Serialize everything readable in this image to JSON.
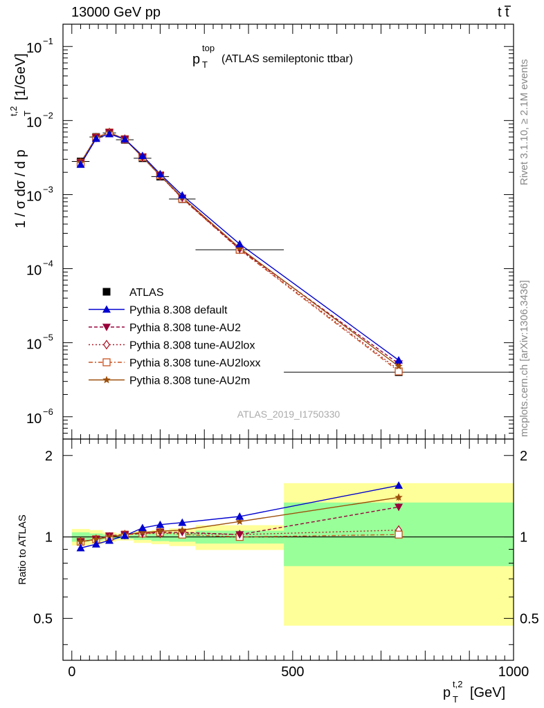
{
  "header": {
    "left": "13000 GeV pp",
    "right_t": "t",
    "right_tbar": "t"
  },
  "side_text": {
    "top": "Rivet 3.1.10, ≥ 2.1M events",
    "bottom": "mcplots.cern.ch [arXiv:1306.3436]"
  },
  "analysis_id": "ATLAS_2019_I1750330",
  "colors": {
    "data": "#000000",
    "default": "#0000d0",
    "au2": "#99003a",
    "au2lox": "#b01a2a",
    "au2loxx": "#c8501e",
    "au2m": "#9c4f0a",
    "band_green": "#99ff99",
    "band_yellow": "#ffff99"
  },
  "chart_data": [
    {
      "type": "line",
      "title_main": "p",
      "title_sup": "top",
      "title_sub": "T",
      "title_rest": "(ATLAS semileptonic ttbar)",
      "ylabel_main": "1 / σ dσ / d p",
      "ylabel_sup": "t,2",
      "ylabel_sub": "T",
      "ylabel_unit": "[1/GeV]",
      "yscale": "log",
      "ylim": [
        5e-07,
        0.2
      ],
      "xlim": [
        -20,
        1000
      ],
      "ytick_labels": [
        {
          "base": "10",
          "exp": "−1",
          "value": 0.1
        },
        {
          "base": "10",
          "exp": "−2",
          "value": 0.01
        },
        {
          "base": "10",
          "exp": "−3",
          "value": 0.001
        },
        {
          "base": "10",
          "exp": "−4",
          "value": 0.0001
        },
        {
          "base": "10",
          "exp": "−5",
          "value": 1e-05
        },
        {
          "base": "10",
          "exp": "−6",
          "value": 1e-06
        }
      ],
      "legend_position": "bottom-left",
      "data_series": {
        "name": "ATLAS",
        "x": [
          20,
          55,
          85,
          120,
          160,
          200,
          250,
          380,
          740
        ],
        "xerr": [
          20,
          15,
          15,
          20,
          20,
          20,
          30,
          100,
          260
        ],
        "y": [
          0.0028,
          0.006,
          0.0068,
          0.0055,
          0.0031,
          0.00175,
          0.00087,
          0.00018,
          4e-06
        ]
      },
      "series": [
        {
          "name": "Pythia 8.308 default",
          "key": "default",
          "marker": "triangle-up",
          "dash": "",
          "y": [
            0.00255,
            0.0057,
            0.0066,
            0.0056,
            0.00335,
            0.0019,
            0.00098,
            0.000215,
            5.8e-06
          ]
        },
        {
          "name": "Pythia 8.308 tune-AU2",
          "key": "au2",
          "marker": "triangle-down",
          "dash": "5,3",
          "y": [
            0.0027,
            0.0059,
            0.0069,
            0.0056,
            0.0032,
            0.00181,
            0.0009,
            0.000183,
            5.2e-06
          ]
        },
        {
          "name": "Pythia 8.308 tune-AU2lox",
          "key": "au2lox",
          "marker": "diamond",
          "dash": "2,3",
          "y": [
            0.0027,
            0.0059,
            0.0069,
            0.0056,
            0.0032,
            0.0018,
            0.00089,
            0.000183,
            4.3e-06
          ]
        },
        {
          "name": "Pythia 8.308 tune-AU2loxx",
          "key": "au2loxx",
          "marker": "square-open",
          "dash": "6,3,2,3",
          "y": [
            0.0027,
            0.0059,
            0.0069,
            0.0056,
            0.0032,
            0.00182,
            0.00088,
            0.00018,
            4.1e-06
          ]
        },
        {
          "name": "Pythia 8.308 tune-AU2m",
          "key": "au2m",
          "marker": "star",
          "dash": "",
          "y": [
            0.0027,
            0.0059,
            0.0069,
            0.0056,
            0.0032,
            0.00182,
            0.00092,
            0.00019,
            4.8e-06
          ]
        }
      ]
    },
    {
      "type": "line",
      "ylabel": "Ratio to ATLAS",
      "xlabel_main": "p",
      "xlabel_sup": "t,2",
      "xlabel_sub": "T",
      "xlabel_unit": "[GeV]",
      "ylim": [
        0.35,
        2.3
      ],
      "xlim": [
        -20,
        1000
      ],
      "yscale": "log",
      "ytick_labels": [
        {
          "label": "2",
          "value": 2
        },
        {
          "label": "1",
          "value": 1
        },
        {
          "label": "0.5",
          "value": 0.5
        }
      ],
      "xtick_labels": [
        {
          "label": "0",
          "value": 0
        },
        {
          "label": "500",
          "value": 500
        },
        {
          "label": "1000",
          "value": 1000
        }
      ],
      "bands": [
        {
          "x0": 0,
          "x1": 40,
          "g": [
            0.96,
            1.04
          ],
          "yl": [
            0.93,
            1.07
          ]
        },
        {
          "x0": 40,
          "x1": 70,
          "g": [
            0.97,
            1.03
          ],
          "yl": [
            0.94,
            1.06
          ]
        },
        {
          "x0": 70,
          "x1": 100,
          "g": [
            0.98,
            1.02
          ],
          "yl": [
            0.96,
            1.04
          ]
        },
        {
          "x0": 100,
          "x1": 140,
          "g": [
            0.985,
            1.015
          ],
          "yl": [
            0.97,
            1.03
          ]
        },
        {
          "x0": 140,
          "x1": 180,
          "g": [
            0.975,
            1.025
          ],
          "yl": [
            0.95,
            1.05
          ]
        },
        {
          "x0": 180,
          "x1": 220,
          "g": [
            0.965,
            1.035
          ],
          "yl": [
            0.94,
            1.06
          ]
        },
        {
          "x0": 220,
          "x1": 280,
          "g": [
            0.96,
            1.04
          ],
          "yl": [
            0.925,
            1.075
          ]
        },
        {
          "x0": 280,
          "x1": 480,
          "g": [
            0.945,
            1.055
          ],
          "yl": [
            0.895,
            1.105
          ]
        },
        {
          "x0": 480,
          "x1": 1000,
          "g": [
            0.78,
            1.34
          ],
          "yl": [
            0.47,
            1.58
          ]
        }
      ],
      "x": [
        20,
        55,
        85,
        120,
        160,
        200,
        250,
        380,
        740
      ],
      "series": [
        {
          "key": "default",
          "y": [
            0.91,
            0.94,
            0.97,
            1.01,
            1.08,
            1.11,
            1.13,
            1.19,
            1.55
          ],
          "err": [
            0,
            0,
            0,
            0,
            0,
            0,
            0,
            0,
            0.04
          ]
        },
        {
          "key": "au2",
          "y": [
            0.96,
            0.98,
            1.01,
            1.02,
            1.03,
            1.04,
            1.04,
            1.02,
            1.29
          ],
          "err": [
            0,
            0,
            0,
            0,
            0,
            0,
            0,
            0,
            0.04
          ]
        },
        {
          "key": "au2lox",
          "y": [
            0.96,
            0.98,
            1.0,
            1.02,
            1.03,
            1.03,
            1.03,
            1.02,
            1.06
          ],
          "err": [
            0,
            0,
            0,
            0,
            0,
            0,
            0,
            0,
            0.03
          ]
        },
        {
          "key": "au2loxx",
          "y": [
            0.96,
            0.98,
            1.0,
            1.02,
            1.03,
            1.04,
            1.02,
            1.0,
            1.02
          ],
          "err": [
            0,
            0,
            0,
            0,
            0,
            0,
            0,
            0,
            0.03
          ]
        },
        {
          "key": "au2m",
          "y": [
            0.96,
            0.98,
            1.0,
            1.02,
            1.04,
            1.05,
            1.06,
            1.14,
            1.4
          ],
          "err": [
            0,
            0,
            0,
            0,
            0,
            0,
            0,
            0,
            0.04
          ]
        }
      ]
    }
  ]
}
